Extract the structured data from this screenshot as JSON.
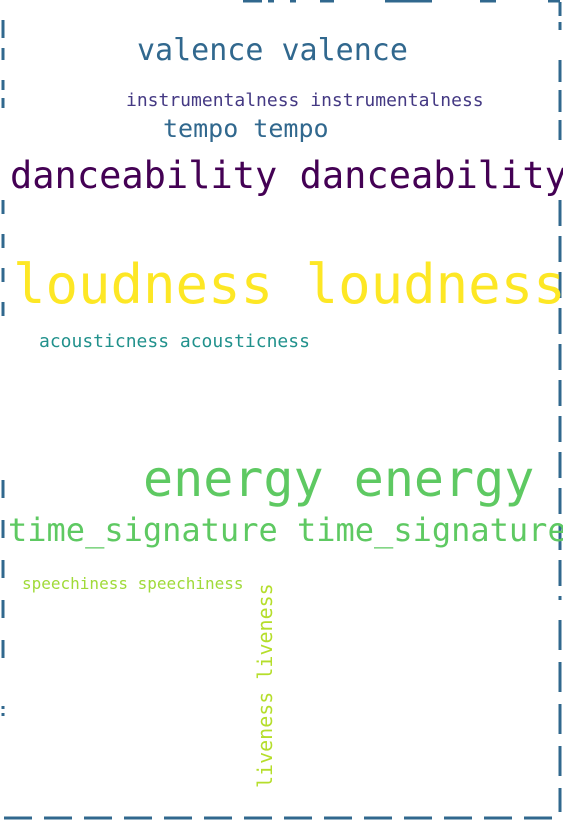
{
  "wordcloud": {
    "words": {
      "valence": "valence valence",
      "instrumentalness": "instrumentalness instrumentalness",
      "tempo": "tempo tempo",
      "danceability": "danceability danceability",
      "loudness": "loudness loudness",
      "acousticness": "acousticness acousticness",
      "energy": "energy energy",
      "time_signature": "time_signature time_signature",
      "speechiness": "speechiness speechiness",
      "liveness": "liveness liveness"
    },
    "colors": {
      "border": "#31688e",
      "valence": "#31688e",
      "instrumentalness": "#443983",
      "tempo": "#31688e",
      "danceability": "#440154",
      "loudness": "#fde725",
      "acousticness": "#21918c",
      "energy": "#5ec962",
      "time_signature": "#5ec962",
      "speechiness": "#a0da39",
      "liveness": "#b5de2b"
    }
  }
}
